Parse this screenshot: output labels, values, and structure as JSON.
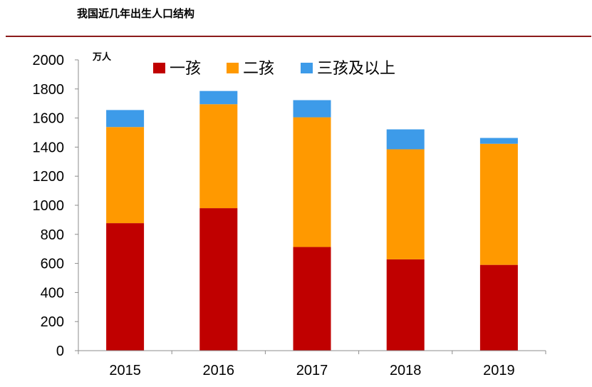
{
  "title": "我国近几年出生人口结构",
  "chart_data": {
    "type": "bar",
    "stacked": true,
    "categories": [
      "2015",
      "2016",
      "2017",
      "2018",
      "2019"
    ],
    "series": [
      {
        "name": "一孩",
        "color": "#c00000",
        "values": [
          877,
          980,
          713,
          628,
          590
        ]
      },
      {
        "name": "二孩",
        "color": "#ff9900",
        "values": [
          661,
          715,
          892,
          757,
          833
        ]
      },
      {
        "name": "三孩及以上",
        "color": "#3d9be9",
        "values": [
          117,
          91,
          118,
          137,
          40
        ]
      }
    ],
    "ylim": [
      0,
      2000
    ],
    "yticks": [
      0,
      200,
      400,
      600,
      800,
      1000,
      1200,
      1400,
      1600,
      1800,
      2000
    ],
    "unit": "万人",
    "legend_position": "top",
    "grid": false
  }
}
